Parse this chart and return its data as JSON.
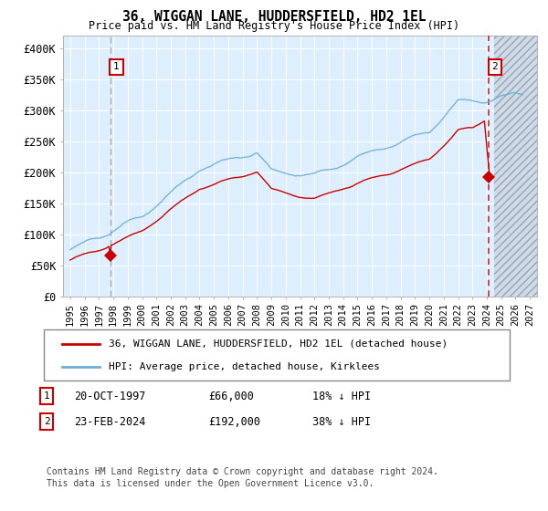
{
  "title": "36, WIGGAN LANE, HUDDERSFIELD, HD2 1EL",
  "subtitle": "Price paid vs. HM Land Registry's House Price Index (HPI)",
  "ylabel_ticks": [
    "£0",
    "£50K",
    "£100K",
    "£150K",
    "£200K",
    "£250K",
    "£300K",
    "£350K",
    "£400K"
  ],
  "ytick_values": [
    0,
    50000,
    100000,
    150000,
    200000,
    250000,
    300000,
    350000,
    400000
  ],
  "ylim": [
    0,
    420000
  ],
  "xlim_start": 1994.5,
  "xlim_end": 2027.5,
  "hpi_color": "#6baed6",
  "price_color": "#cc0000",
  "vline1_color": "#aaaaaa",
  "vline2_color": "#cc0000",
  "point1_x": 1997.8,
  "point1_y": 66000,
  "point2_x": 2024.15,
  "point2_y": 192000,
  "annotation1_date": "20-OCT-1997",
  "annotation1_price": "£66,000",
  "annotation1_hpi": "18% ↓ HPI",
  "annotation2_date": "23-FEB-2024",
  "annotation2_price": "£192,000",
  "annotation2_hpi": "38% ↓ HPI",
  "legend_label1": "36, WIGGAN LANE, HUDDERSFIELD, HD2 1EL (detached house)",
  "legend_label2": "HPI: Average price, detached house, Kirklees",
  "footer": "Contains HM Land Registry data © Crown copyright and database right 2024.\nThis data is licensed under the Open Government Licence v3.0.",
  "background_color": "#ddeeff",
  "grid_color": "#ffffff",
  "hatch_start": 2024.5,
  "xticks": [
    1995,
    1996,
    1997,
    1998,
    1999,
    2000,
    2001,
    2002,
    2003,
    2004,
    2005,
    2006,
    2007,
    2008,
    2009,
    2010,
    2011,
    2012,
    2013,
    2014,
    2015,
    2016,
    2017,
    2018,
    2019,
    2020,
    2021,
    2022,
    2023,
    2024,
    2025,
    2026,
    2027
  ]
}
